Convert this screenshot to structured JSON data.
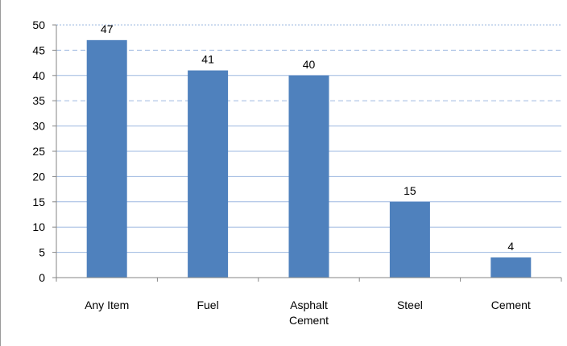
{
  "chart_data": {
    "type": "bar",
    "categories": [
      "Any Item",
      "Fuel",
      "Asphalt Cement",
      "Steel",
      "Cement"
    ],
    "category_lines": [
      [
        "Any Item"
      ],
      [
        "Fuel"
      ],
      [
        "Asphalt",
        "Cement"
      ],
      [
        "Steel"
      ],
      [
        "Cement"
      ]
    ],
    "values": [
      47,
      41,
      40,
      15,
      4
    ],
    "data_labels": [
      "47",
      "41",
      "40",
      "15",
      "4"
    ],
    "ylim": [
      0,
      50
    ],
    "yticks": [
      0,
      5,
      10,
      15,
      20,
      25,
      30,
      35,
      40,
      45,
      50
    ],
    "grid": true,
    "legend": "none",
    "bar_color": "#4f81bd",
    "grid_color": "#9db8e0",
    "axis_color": "#868686"
  }
}
